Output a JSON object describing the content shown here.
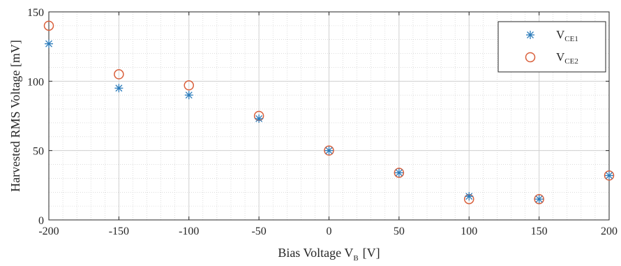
{
  "chart_data": {
    "type": "scatter",
    "title": "",
    "xlabel": "Bias Voltage V",
    "xlabel_sub": "B",
    "xlabel_unit": "[V]",
    "ylabel": "Harvested RMS Voltage [mV]",
    "xlim": [
      -200,
      200
    ],
    "ylim": [
      0,
      150
    ],
    "x_ticks": [
      -200,
      -150,
      -100,
      -50,
      0,
      50,
      100,
      150,
      200
    ],
    "y_ticks": [
      0,
      50,
      100,
      150
    ],
    "x_tick_labels": [
      "-200",
      "-150",
      "-100",
      "-50",
      "0",
      "50",
      "100",
      "150",
      "200"
    ],
    "y_tick_labels": [
      "0",
      "50",
      "100",
      "150"
    ],
    "grid": true,
    "minor_grid": true,
    "legend_position": "top-right",
    "x": [
      -200,
      -150,
      -100,
      -50,
      0,
      50,
      100,
      150,
      200
    ],
    "series": [
      {
        "name": "V",
        "name_sub": "CE1",
        "marker": "asterisk",
        "color": "#2b7bba",
        "values": [
          127,
          95,
          90,
          73,
          50,
          34,
          17,
          15,
          32
        ]
      },
      {
        "name": "V",
        "name_sub": "CE2",
        "marker": "circle",
        "color": "#d95f3b",
        "values": [
          140,
          105,
          97,
          75,
          50,
          34,
          15,
          15,
          32
        ]
      }
    ]
  }
}
